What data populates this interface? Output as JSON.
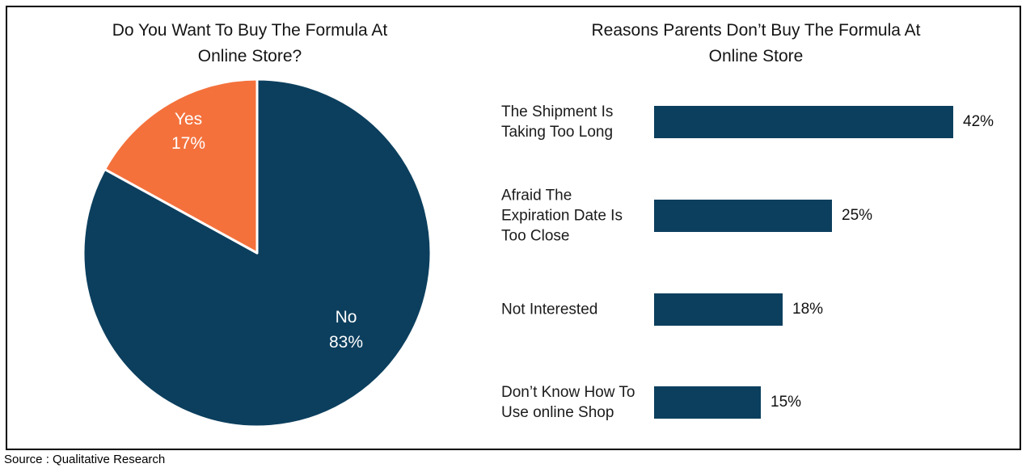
{
  "left_panel": {
    "title_line1": "Do You Want To Buy The Formula At",
    "title_line2": "Online Store?",
    "labels": {
      "yes": {
        "text": "Yes",
        "pct": "17%"
      },
      "no": {
        "text": "No",
        "pct": "83%"
      }
    }
  },
  "right_panel": {
    "title_line1": "Reasons Parents Don’t Buy The Formula At",
    "title_line2": "Online Store",
    "rows": [
      {
        "lines": [
          "The Shipment Is",
          "Taking Too Long"
        ],
        "value_label": "42%"
      },
      {
        "lines": [
          "Afraid The",
          "Expiration Date Is",
          "Too Close"
        ],
        "value_label": "25%"
      },
      {
        "lines": [
          "Not Interested"
        ],
        "value_label": "18%"
      },
      {
        "lines": [
          "Don’t Know How To",
          "Use online Shop"
        ],
        "value_label": "15%"
      }
    ]
  },
  "source": {
    "text": "Source : Qualitative Research"
  },
  "colors": {
    "navy": "#0C3F5E",
    "orange": "#F4713C",
    "slice_border": "#FFFFFF"
  },
  "chart_data": [
    {
      "type": "pie",
      "title": "Do You Want To Buy The Formula At Online Store?",
      "labels": [
        "Yes",
        "No"
      ],
      "values": [
        17,
        83
      ],
      "data_labels": [
        "17%",
        "83%"
      ],
      "colors": [
        "#F4713C",
        "#0C3F5E"
      ],
      "label_position": "inside",
      "start_angle_deg": 0,
      "note": "Yes slice drawn counterclockwise from 12 o'clock; white borders between slices"
    },
    {
      "type": "bar",
      "orientation": "horizontal",
      "title": "Reasons Parents Don’t Buy The Formula At Online Store",
      "categories": [
        "The Shipment Is Taking Too Long",
        "Afraid The Expiration Date Is Too Close",
        "Not Interested",
        "Don’t Know How To Use online Shop"
      ],
      "values": [
        42,
        25,
        18,
        15
      ],
      "data_labels": [
        "42%",
        "25%",
        "18%",
        "15%"
      ],
      "bar_color": "#0C3F5E",
      "xlim": [
        0,
        47
      ],
      "grid": false,
      "value_label_position": "end-of-bar"
    }
  ]
}
